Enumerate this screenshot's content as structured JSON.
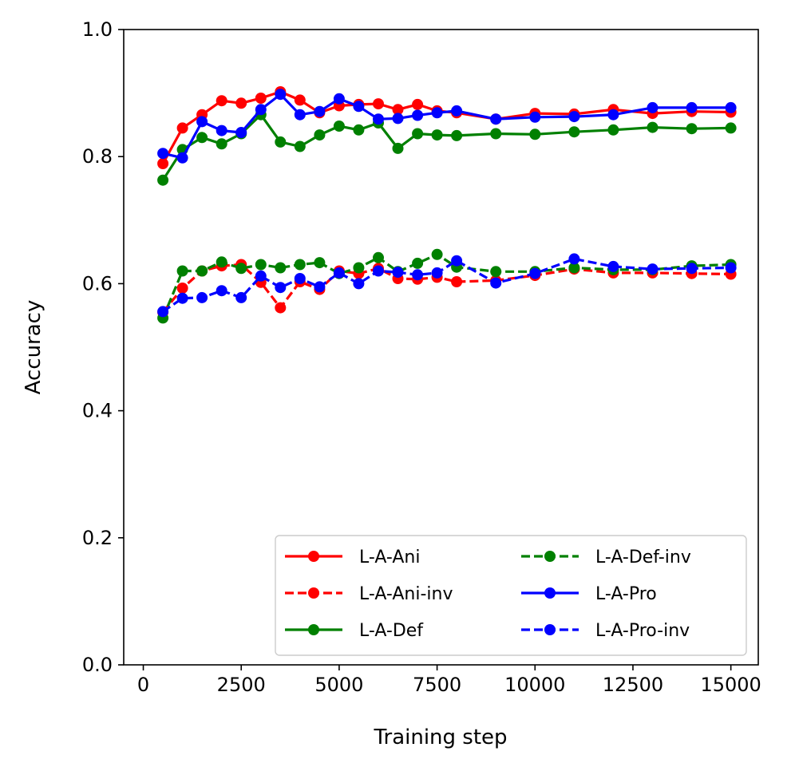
{
  "chart_data": {
    "type": "line",
    "title": "",
    "xlabel": "Training step",
    "ylabel": "Accuracy",
    "xlim": [
      -500,
      15700
    ],
    "ylim": [
      0.0,
      1.0
    ],
    "xticks": [
      0,
      2500,
      5000,
      7500,
      10000,
      12500,
      15000
    ],
    "xtick_labels": [
      "0",
      "2500",
      "5000",
      "7500",
      "10000",
      "12500",
      "15000"
    ],
    "yticks": [
      0.0,
      0.2,
      0.4,
      0.6,
      0.8,
      1.0
    ],
    "ytick_labels": [
      "0.0",
      "0.2",
      "0.4",
      "0.6",
      "0.8",
      "1.0"
    ],
    "grid": false,
    "legend_position": "bottom-right",
    "legend_columns": 2,
    "series": [
      {
        "name": "L-A-Ani",
        "color": "#ff0000",
        "style": "solid",
        "x": [
          500,
          1000,
          1500,
          2000,
          2500,
          3000,
          3500,
          4000,
          4500,
          5000,
          5500,
          6000,
          6500,
          7000,
          7500,
          8000,
          9000,
          10000,
          11000,
          12000,
          13000,
          14000,
          15000
        ],
        "y": [
          0.789,
          0.845,
          0.866,
          0.888,
          0.884,
          0.892,
          0.902,
          0.889,
          0.869,
          0.88,
          0.882,
          0.883,
          0.874,
          0.882,
          0.872,
          0.869,
          0.859,
          0.868,
          0.867,
          0.874,
          0.868,
          0.871,
          0.87
        ]
      },
      {
        "name": "L-A-Ani-inv",
        "color": "#ff0000",
        "style": "dashed",
        "x": [
          500,
          1000,
          1500,
          2000,
          2500,
          3000,
          3500,
          4000,
          4500,
          5000,
          5500,
          6000,
          6500,
          7000,
          7500,
          8000,
          9000,
          10000,
          11000,
          12000,
          13000,
          14000,
          15000
        ],
        "y": [
          0.555,
          0.593,
          0.62,
          0.628,
          0.63,
          0.602,
          0.562,
          0.603,
          0.591,
          0.62,
          0.616,
          0.624,
          0.608,
          0.607,
          0.61,
          0.603,
          0.605,
          0.613,
          0.623,
          0.617,
          0.617,
          0.616,
          0.615
        ]
      },
      {
        "name": "L-A-Def",
        "color": "#008000",
        "style": "solid",
        "x": [
          500,
          1000,
          1500,
          2000,
          2500,
          3000,
          3500,
          4000,
          4500,
          5000,
          5500,
          6000,
          6500,
          7000,
          7500,
          8000,
          9000,
          10000,
          11000,
          12000,
          13000,
          14000,
          15000
        ],
        "y": [
          0.763,
          0.811,
          0.83,
          0.82,
          0.836,
          0.866,
          0.823,
          0.816,
          0.834,
          0.848,
          0.842,
          0.853,
          0.813,
          0.836,
          0.834,
          0.833,
          0.836,
          0.835,
          0.839,
          0.842,
          0.846,
          0.844,
          0.845
        ]
      },
      {
        "name": "L-A-Def-inv",
        "color": "#008000",
        "style": "dashed",
        "x": [
          500,
          1000,
          1500,
          2000,
          2500,
          3000,
          3500,
          4000,
          4500,
          5000,
          5500,
          6000,
          6500,
          7000,
          7500,
          8000,
          9000,
          10000,
          11000,
          12000,
          13000,
          14000,
          15000
        ],
        "y": [
          0.546,
          0.62,
          0.62,
          0.634,
          0.624,
          0.63,
          0.625,
          0.63,
          0.633,
          0.616,
          0.625,
          0.641,
          0.619,
          0.632,
          0.646,
          0.626,
          0.619,
          0.619,
          0.625,
          0.622,
          0.622,
          0.628,
          0.63
        ]
      },
      {
        "name": "L-A-Pro",
        "color": "#0000ff",
        "style": "solid",
        "x": [
          500,
          1000,
          1500,
          2000,
          2500,
          3000,
          3500,
          4000,
          4500,
          5000,
          5500,
          6000,
          6500,
          7000,
          7500,
          8000,
          9000,
          10000,
          11000,
          12000,
          13000,
          14000,
          15000
        ],
        "y": [
          0.805,
          0.798,
          0.855,
          0.841,
          0.838,
          0.874,
          0.898,
          0.866,
          0.871,
          0.891,
          0.879,
          0.859,
          0.86,
          0.865,
          0.869,
          0.872,
          0.859,
          0.862,
          0.863,
          0.866,
          0.877,
          0.877,
          0.877
        ]
      },
      {
        "name": "L-A-Pro-inv",
        "color": "#0000ff",
        "style": "dashed",
        "x": [
          500,
          1000,
          1500,
          2000,
          2500,
          3000,
          3500,
          4000,
          4500,
          5000,
          5500,
          6000,
          6500,
          7000,
          7500,
          8000,
          9000,
          10000,
          11000,
          12000,
          13000,
          14000,
          15000
        ],
        "y": [
          0.556,
          0.577,
          0.578,
          0.589,
          0.578,
          0.612,
          0.594,
          0.608,
          0.595,
          0.617,
          0.6,
          0.62,
          0.618,
          0.614,
          0.617,
          0.636,
          0.601,
          0.616,
          0.639,
          0.627,
          0.623,
          0.624,
          0.625
        ]
      }
    ]
  }
}
